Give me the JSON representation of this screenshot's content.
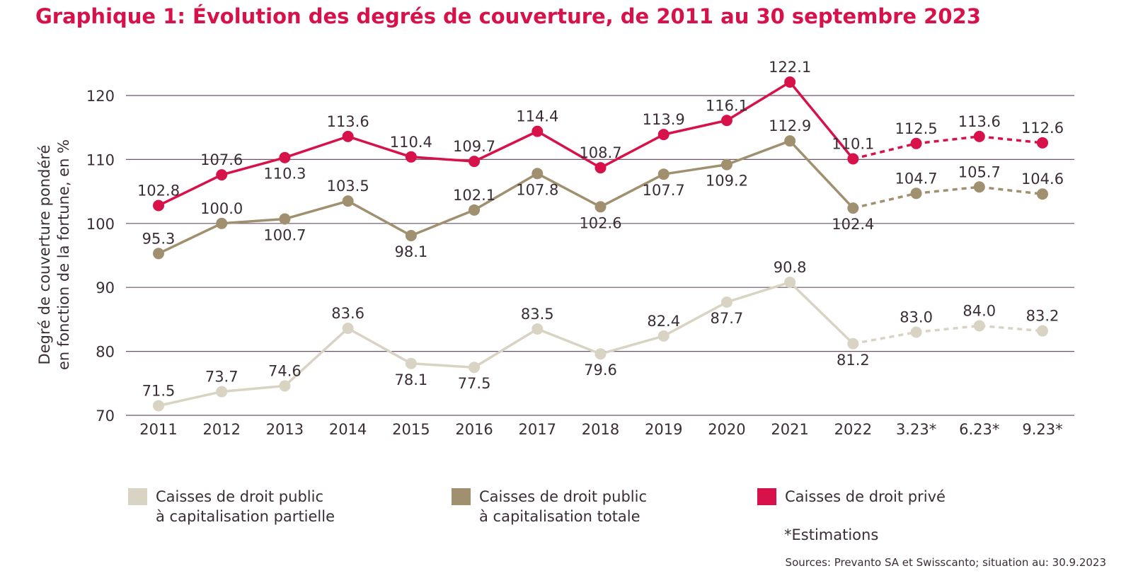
{
  "title": "Graphique 1: Évolution des degrés de couverture, de 2011 au 30 septembre 2023",
  "colors": {
    "title": "#d7124a",
    "axis_text": "#3b2d36",
    "gridline": "#6b5468",
    "partielle": "#d9d3c4",
    "totale": "#a09070",
    "prive": "#d7124a"
  },
  "chart_data": {
    "type": "line",
    "ylabel_lines": [
      "Degré de couverture pondéré",
      "en fonction de la fortune, en %"
    ],
    "xlabel": "",
    "ylim": [
      70,
      120
    ],
    "yticks": [
      70,
      80,
      90,
      100,
      110,
      120
    ],
    "categories": [
      "2011",
      "2012",
      "2013",
      "2014",
      "2015",
      "2016",
      "2017",
      "2018",
      "2019",
      "2020",
      "2021",
      "2022",
      "3.23*",
      "6.23*",
      "9.23*"
    ],
    "estimate_start_index": 11,
    "grid": true,
    "legend_position": "bottom",
    "series": [
      {
        "key": "partielle",
        "name_lines": [
          "Caisses de droit public",
          "à capitalisation partielle"
        ],
        "values": [
          71.5,
          73.7,
          74.6,
          83.6,
          78.1,
          77.5,
          83.5,
          79.6,
          82.4,
          87.7,
          90.8,
          81.2,
          83.0,
          84.0,
          83.2
        ],
        "labels": [
          "71.5",
          "73.7",
          "74.6",
          "83.6",
          "78.1",
          "77.5",
          "83.5",
          "79.6",
          "82.4",
          "87.7",
          "90.8",
          "81.2",
          "83.0",
          "84.0",
          "83.2"
        ],
        "label_pos": [
          "above",
          "above",
          "above",
          "above",
          "below",
          "below",
          "above",
          "below",
          "above",
          "below",
          "above",
          "below",
          "above",
          "above",
          "above"
        ]
      },
      {
        "key": "totale",
        "name_lines": [
          "Caisses de droit public",
          "à capitalisation totale"
        ],
        "values": [
          95.3,
          100.0,
          100.7,
          103.5,
          98.1,
          102.1,
          107.8,
          102.6,
          107.7,
          109.2,
          112.9,
          102.4,
          104.7,
          105.7,
          104.6
        ],
        "labels": [
          "95.3",
          "100.0",
          "100.7",
          "103.5",
          "98.1",
          "102.1",
          "107.8",
          "102.6",
          "107.7",
          "109.2",
          "112.9",
          "102.4",
          "104.7",
          "105.7",
          "104.6"
        ],
        "label_pos": [
          "above",
          "above",
          "below",
          "above",
          "below",
          "above",
          "below",
          "below",
          "below",
          "below",
          "above",
          "below",
          "above",
          "above",
          "above"
        ]
      },
      {
        "key": "prive",
        "name_lines": [
          "Caisses de droit privé"
        ],
        "values": [
          102.8,
          107.6,
          110.3,
          113.6,
          110.4,
          109.7,
          114.4,
          108.7,
          113.9,
          116.1,
          122.1,
          110.1,
          112.5,
          113.6,
          112.6
        ],
        "labels": [
          "102.8",
          "107.6",
          "110.3",
          "113.6",
          "110.4",
          "109.7",
          "114.4",
          "108.7",
          "113.9",
          "116.1",
          "122.1",
          "110.1",
          "112.5",
          "113.6",
          "112.6"
        ],
        "label_pos": [
          "above",
          "above",
          "below",
          "above",
          "above",
          "above",
          "above",
          "above",
          "above",
          "above",
          "above",
          "above",
          "above",
          "above",
          "above"
        ]
      }
    ]
  },
  "legend": {
    "partielle": [
      "Caisses de droit public",
      "à capitalisation partielle"
    ],
    "totale": [
      "Caisses de droit public",
      "à capitalisation totale"
    ],
    "prive": [
      "Caisses de droit privé"
    ]
  },
  "note": "*Estimations",
  "source": "Sources: Prevanto SA et Swisscanto; situation au: 30.9.2023"
}
